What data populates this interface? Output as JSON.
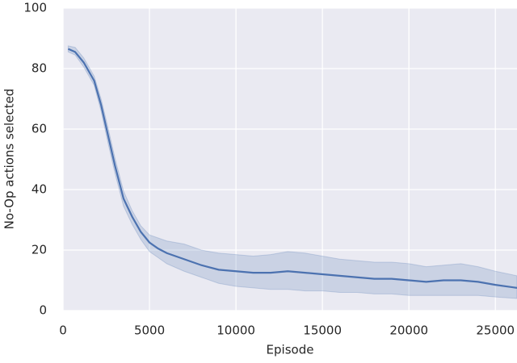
{
  "chart_data": {
    "type": "line",
    "xlabel": "Episode",
    "ylabel": "No-Op actions selected",
    "x": [
      300,
      700,
      1200,
      1800,
      2200,
      2600,
      3000,
      3500,
      4000,
      4500,
      5000,
      5500,
      6000,
      7000,
      8000,
      9000,
      10000,
      11000,
      12000,
      13000,
      14000,
      15000,
      16000,
      17000,
      18000,
      19000,
      20000,
      21000,
      22000,
      23000,
      24000,
      25000,
      26250
    ],
    "values": [
      86.5,
      85.5,
      82,
      76,
      68,
      58,
      48,
      37,
      31,
      26,
      22.5,
      20.5,
      19,
      17,
      15,
      13.5,
      13,
      12.5,
      12.5,
      13,
      12.5,
      12,
      11.5,
      11,
      10.5,
      10.5,
      10,
      9.5,
      10,
      10,
      9.5,
      8.5,
      7.5
    ],
    "lower": [
      85.5,
      84.5,
      80.5,
      74.5,
      66,
      55.5,
      45.5,
      34.5,
      28.5,
      23.5,
      19.5,
      17.5,
      15.5,
      13,
      11,
      9,
      8,
      7.5,
      7,
      7,
      6.5,
      6.5,
      6,
      6,
      5.5,
      5.5,
      5,
      5,
      5,
      5,
      5,
      4.5,
      4
    ],
    "upper": [
      87.5,
      87,
      83.5,
      77.5,
      70,
      60.5,
      50.5,
      39.5,
      33,
      28,
      25,
      24,
      23,
      22,
      20,
      19,
      18.5,
      18,
      18.5,
      19.5,
      19,
      18,
      17,
      16.5,
      16,
      16,
      15.5,
      14.5,
      15,
      15.5,
      14.5,
      13,
      11.5
    ],
    "color": "#4c72b0",
    "xlim": [
      0,
      26250
    ],
    "xticks": [
      0,
      5000,
      10000,
      15000,
      20000,
      25000
    ],
    "ylim": [
      0,
      100
    ],
    "yticks": [
      0,
      20,
      40,
      60,
      80,
      100
    ],
    "grid": true
  }
}
